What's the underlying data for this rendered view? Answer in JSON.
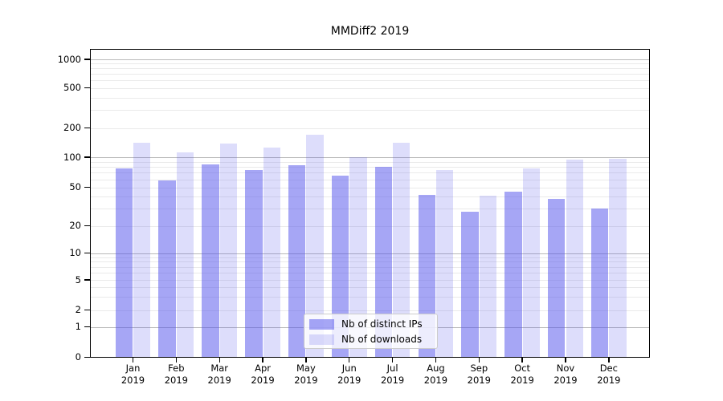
{
  "chart_data": {
    "type": "bar",
    "title": "MMDiff2 2019",
    "categories": [
      "Jan 2019",
      "Feb 2019",
      "Mar 2019",
      "Apr 2019",
      "May 2019",
      "Jun 2019",
      "Jul 2019",
      "Aug 2019",
      "Sep 2019",
      "Oct 2019",
      "Nov 2019",
      "Dec 2019"
    ],
    "series": [
      {
        "name": "Nb of distinct IPs",
        "color_hex": "#a6a6f4",
        "color": "rgba(85,85,235,0.52)",
        "values": [
          77,
          59,
          85,
          75,
          83,
          65,
          80,
          42,
          28,
          45,
          38,
          30
        ]
      },
      {
        "name": "Nb of downloads",
        "color_hex": "#dcdcfa",
        "color": "rgba(85,85,235,0.20)",
        "values": [
          140,
          112,
          139,
          126,
          169,
          100,
          140,
          74,
          41,
          77,
          95,
          97
        ]
      }
    ],
    "xlabel": "",
    "ylabel": "",
    "yscale": "symlog (log above 1, linear 0-1)",
    "yticks": [
      0,
      1,
      2,
      5,
      10,
      20,
      50,
      100,
      200,
      500,
      1000
    ],
    "ylim": [
      0,
      1300
    ],
    "grid": {
      "axis": "y",
      "major": true,
      "minor": true
    },
    "legend": {
      "location": "lower center, inside plot",
      "entries": [
        "Nb of distinct IPs",
        "Nb of downloads"
      ]
    }
  },
  "style": {
    "grid_major_color": "#b9b9b9",
    "grid_minor_color": "#eaeaea",
    "spine_color": "#000000",
    "text_color": "#000000",
    "legend_border_color": "#cccccc",
    "legend_bg": "rgba(255,255,255,0.8)"
  }
}
